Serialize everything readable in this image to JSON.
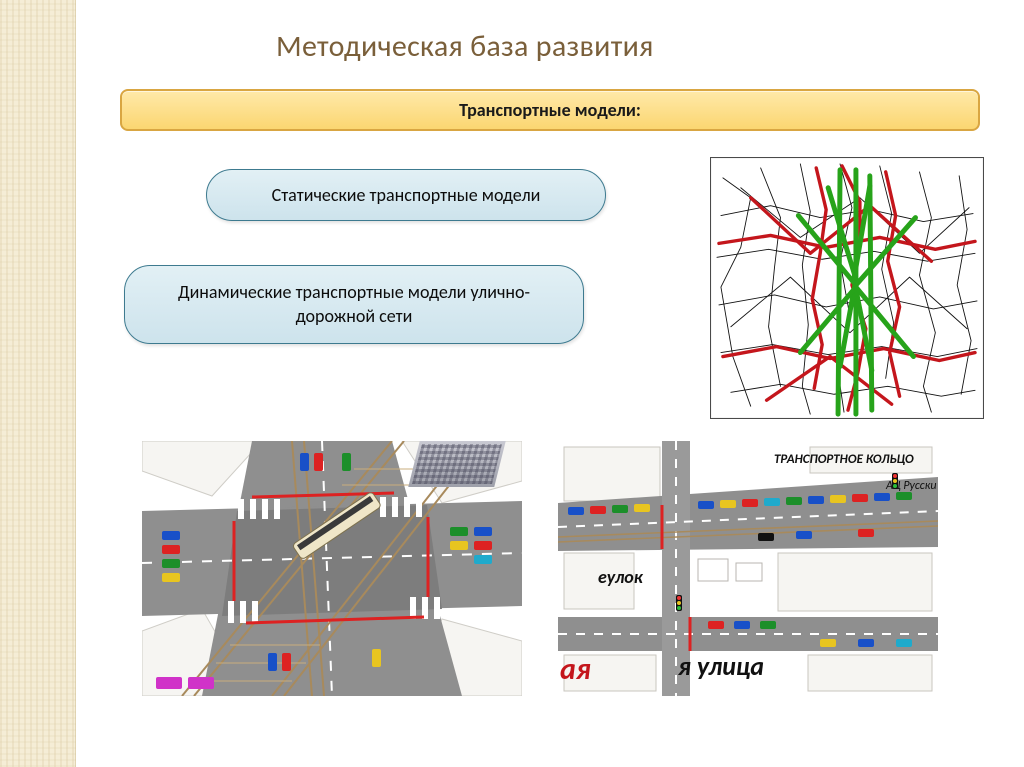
{
  "title": "Методическая база развития",
  "banner": "Транспортные модели:",
  "bubble_static": "Статические транспортные модели",
  "bubble_dynamic": "Динамические транспортные модели улично-дорожной сети",
  "scene2": {
    "label_ring": "ТРАНСПОРТНОЕ КОЛЬЦО",
    "label_lane": "еулок",
    "label_street": "я улица",
    "label_red": "ая",
    "label_right": "АЦ Русски"
  },
  "colors": {
    "bg": "#ffffff",
    "sidebar": "#f5edd6",
    "title": "#7a5f3a",
    "banner_top": "#ffe9a9",
    "banner_bot": "#fbd671",
    "banner_border": "#d9a642",
    "bubble_top": "#e2f0f5",
    "bubble_bot": "#cde3ec",
    "bubble_border": "#3d7a8f",
    "map_border": "#4a4a4a",
    "map_red": "#c4161c",
    "map_green": "#27a31a",
    "map_black": "#111111",
    "road": "#8f8f8f",
    "road_dark": "#6c6c6c",
    "rail": "#a88a5c",
    "lane_white": "#ffffff",
    "car_red": "#d22",
    "car_blue": "#1850c8",
    "car_green": "#1c8f2a",
    "car_yellow": "#e8c520",
    "car_magenta": "#d032c8",
    "car_cyan": "#1faacc",
    "block_fill": "#f5f4f2",
    "block_stroke": "#b8b6b0"
  },
  "map_diagram": {
    "type": "network",
    "background_color": "#ffffff",
    "thin_black_paths": [
      "M12 20 L40 40 L30 90 L10 130 L22 200 L40 250",
      "M50 10 L70 60 L64 110 L58 170 L70 230",
      "M90 6 L100 54 L92 108 L98 168 L92 230 L100 258",
      "M130 6 L142 50 L130 104 L140 160 L128 216 L134 256",
      "M170 8 L182 56 L172 112 L184 166 L176 222",
      "M210 14 L222 60 L210 118 L226 176 L214 230 L222 256",
      "M250 18 L258 72 L248 128 L262 184 L252 238",
      "M10 58 L60 48 L110 60 L160 52 L214 64 L264 56",
      "M6 100 L58 92 L112 102 L164 94 L218 104 L266 96",
      "M8 148 L64 138 L116 150 L170 140 L224 152 L268 144",
      "M10 196 L62 188 L118 198 L172 190 L228 200 L268 192",
      "M20 236 L70 228 L124 238 L178 230 L232 240 L266 234",
      "M30 30 L90 80 L150 40 L210 96 L260 50",
      "M20 170 L80 120 L140 176 L200 120 L258 172"
    ],
    "thick_red_paths": [
      "M132 8 L150 44 L150 84 L142 128 L156 172 L148 216 L138 254",
      "M106 10 L116 52 L110 96 L102 142 L112 188 L104 232",
      "M176 14 L186 58 L178 104 L190 150 L180 196 L190 240",
      "M8 86 L60 78 L116 90 L170 80 L226 92 L266 84",
      "M12 200 L66 190 L120 202 L174 192 L230 204 L266 196",
      "M40 40 L100 96 L160 48 L222 104",
      "M56 244 L120 200 L182 248"
    ],
    "thick_green_paths": [
      "M146 12 L146 258",
      "M130 12 L128 258",
      "M160 18 L162 254",
      "M118 30 L146 122 L130 210",
      "M160 28 L144 122 L162 214",
      "M88 58 L146 128 L206 60",
      "M90 196 L146 130 L204 200"
    ],
    "stroke_widths": {
      "thin": 0.9,
      "red": 3.4,
      "green": 5.0
    }
  }
}
